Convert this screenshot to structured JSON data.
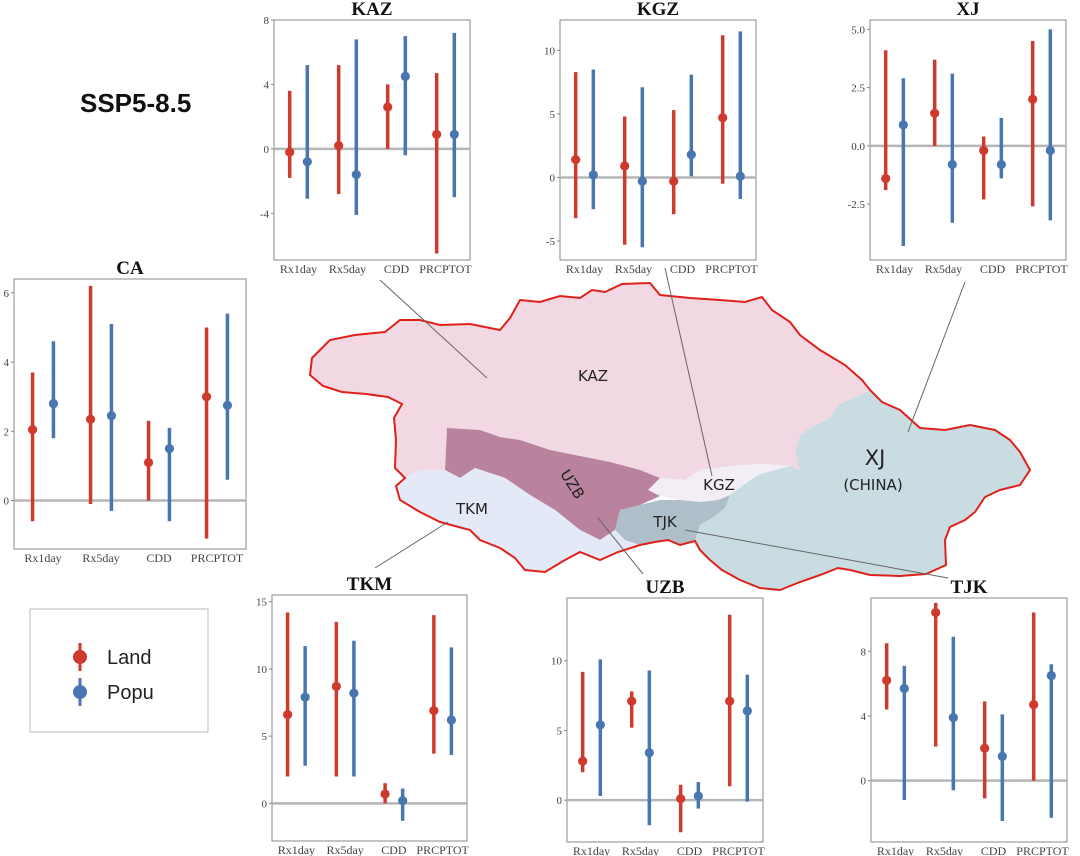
{
  "scenario": "SSP5-8.5",
  "colors": {
    "land": "#D03A2C",
    "popu": "#4A76B0"
  },
  "legend": [
    {
      "label": "Land",
      "color": "#D03A2C"
    },
    {
      "label": "Popu",
      "color": "#4A76B0"
    }
  ],
  "map": {
    "labels": {
      "KAZ": "KAZ",
      "UZB": "UZB",
      "TKM": "TKM",
      "KGZ": "KGZ",
      "TJK": "TJK",
      "XJ": "XJ",
      "XJ_sub": "(CHINA)"
    },
    "colors": {
      "KAZ": "#F2D8E3",
      "UZB": "#B9839E",
      "TKM": "#E3E9F6",
      "KGZ": "#F3EEF5",
      "TJK": "#AFBFCA",
      "XJ": "#C9DCE1",
      "border": "#E0211B"
    }
  },
  "chart_data": [
    {
      "region": "KAZ",
      "type": "scatter",
      "title": "KAZ",
      "categories": [
        "Rx1day",
        "Rx5day",
        "CDD",
        "PRCPTOT"
      ],
      "yticks": [
        -4,
        0,
        4,
        8
      ],
      "ylim": [
        -6.9,
        8
      ],
      "grid": false,
      "reference_line": 0,
      "series": [
        {
          "name": "Land",
          "values": [
            -0.2,
            0.2,
            2.6,
            0.9
          ],
          "low": [
            -1.8,
            -2.8,
            0.0,
            -6.5
          ],
          "high": [
            3.6,
            5.2,
            4.0,
            4.7
          ]
        },
        {
          "name": "Popu",
          "values": [
            -0.8,
            -1.6,
            4.5,
            0.9
          ],
          "low": [
            -3.1,
            -4.1,
            -0.4,
            -3.0
          ],
          "high": [
            5.2,
            6.8,
            7.0,
            7.2
          ]
        }
      ]
    },
    {
      "region": "KGZ",
      "type": "scatter",
      "title": "KGZ",
      "categories": [
        "Rx1day",
        "Rx5day",
        "CDD",
        "PRCPTOT"
      ],
      "yticks": [
        -5,
        0,
        5,
        10
      ],
      "ylim": [
        -6.5,
        12.4
      ],
      "grid": false,
      "reference_line": 0,
      "series": [
        {
          "name": "Land",
          "values": [
            1.4,
            0.9,
            -0.3,
            4.7
          ],
          "low": [
            -3.2,
            -5.3,
            -2.9,
            -0.5
          ],
          "high": [
            8.3,
            4.8,
            5.3,
            11.2
          ]
        },
        {
          "name": "Popu",
          "values": [
            0.2,
            -0.3,
            1.8,
            0.1
          ],
          "low": [
            -2.5,
            -5.5,
            0.1,
            -1.7
          ],
          "high": [
            8.5,
            7.1,
            8.1,
            11.5
          ]
        }
      ]
    },
    {
      "region": "XJ",
      "type": "scatter",
      "title": "XJ",
      "categories": [
        "Rx1day",
        "Rx5day",
        "CDD",
        "PRCPTOT"
      ],
      "yticks": [
        -2.5,
        0.0,
        2.5,
        5.0
      ],
      "ylim": [
        -4.9,
        5.4
      ],
      "grid": false,
      "reference_line": 0,
      "series": [
        {
          "name": "Land",
          "values": [
            -1.4,
            1.4,
            -0.2,
            2.0
          ],
          "low": [
            -1.9,
            0.0,
            -2.3,
            -2.6
          ],
          "high": [
            4.1,
            3.7,
            0.4,
            4.5
          ]
        },
        {
          "name": "Popu",
          "values": [
            0.9,
            -0.8,
            -0.8,
            -0.2
          ],
          "low": [
            -4.3,
            -3.3,
            -1.4,
            -3.2
          ],
          "high": [
            2.9,
            3.1,
            1.2,
            5.0
          ]
        }
      ]
    },
    {
      "region": "CA",
      "type": "scatter",
      "title": "CA",
      "categories": [
        "Rx1day",
        "Rx5day",
        "CDD",
        "PRCPTOT"
      ],
      "yticks": [
        0,
        2,
        4,
        6
      ],
      "ylim": [
        -1.4,
        6.4
      ],
      "grid": false,
      "reference_line": 0,
      "series": [
        {
          "name": "Land",
          "values": [
            2.05,
            2.35,
            1.1,
            3.0
          ],
          "low": [
            -0.6,
            -0.1,
            0.0,
            -1.1
          ],
          "high": [
            3.7,
            6.2,
            2.3,
            5.0
          ]
        },
        {
          "name": "Popu",
          "values": [
            2.8,
            2.45,
            1.5,
            2.75
          ],
          "low": [
            1.8,
            -0.3,
            -0.6,
            0.6
          ],
          "high": [
            4.6,
            5.1,
            2.1,
            5.4
          ]
        }
      ]
    },
    {
      "region": "TKM",
      "type": "scatter",
      "title": "TKM",
      "categories": [
        "Rx1day",
        "Rx5day",
        "CDD",
        "PRCPTOT"
      ],
      "yticks": [
        0,
        5,
        10,
        15
      ],
      "ylim": [
        -2.8,
        15.5
      ],
      "grid": false,
      "reference_line": 0,
      "series": [
        {
          "name": "Land",
          "values": [
            6.6,
            8.7,
            0.7,
            6.9
          ],
          "low": [
            2.0,
            2.0,
            0.0,
            3.7
          ],
          "high": [
            14.2,
            13.5,
            1.5,
            14.0
          ]
        },
        {
          "name": "Popu",
          "values": [
            7.9,
            8.2,
            0.2,
            6.2
          ],
          "low": [
            2.8,
            2.0,
            -1.3,
            3.6
          ],
          "high": [
            11.7,
            12.1,
            1.1,
            11.6
          ]
        }
      ]
    },
    {
      "region": "UZB",
      "type": "scatter",
      "title": "UZB",
      "categories": [
        "Rx1day",
        "Rx5day",
        "CDD",
        "PRCPTOT"
      ],
      "yticks": [
        0,
        5,
        10
      ],
      "ylim": [
        -3.0,
        14.5
      ],
      "grid": false,
      "reference_line": 0,
      "series": [
        {
          "name": "Land",
          "values": [
            2.8,
            7.1,
            0.1,
            7.1
          ],
          "low": [
            2.0,
            5.2,
            -2.3,
            1.0
          ],
          "high": [
            9.2,
            7.8,
            1.1,
            13.3
          ]
        },
        {
          "name": "Popu",
          "values": [
            5.4,
            3.4,
            0.3,
            6.4
          ],
          "low": [
            0.3,
            -1.8,
            -0.6,
            -0.1
          ],
          "high": [
            10.1,
            9.3,
            1.3,
            9.0
          ]
        }
      ]
    },
    {
      "region": "TJK",
      "type": "scatter",
      "title": "TJK",
      "categories": [
        "Rx1day",
        "Rx5day",
        "CDD",
        "PRCPTOT"
      ],
      "yticks": [
        0,
        4,
        8
      ],
      "ylim": [
        -3.8,
        11.3
      ],
      "grid": false,
      "reference_line": 0,
      "series": [
        {
          "name": "Land",
          "values": [
            6.2,
            10.4,
            2.0,
            4.7
          ],
          "low": [
            4.4,
            2.1,
            -1.1,
            0.0
          ],
          "high": [
            8.5,
            11.0,
            4.9,
            10.4
          ]
        },
        {
          "name": "Popu",
          "values": [
            5.7,
            3.9,
            1.5,
            6.5
          ],
          "low": [
            -1.2,
            -0.6,
            -2.5,
            -2.3
          ],
          "high": [
            7.1,
            8.9,
            4.1,
            7.2
          ]
        }
      ]
    }
  ]
}
